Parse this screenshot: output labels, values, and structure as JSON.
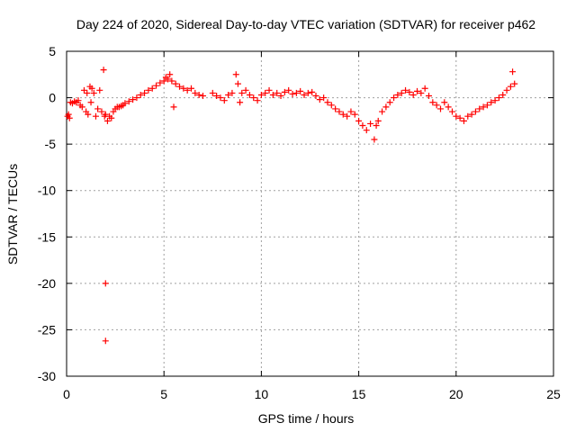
{
  "chart_data": {
    "type": "scatter",
    "title": "Day 224 of 2020, Sidereal Day-to-day VTEC variation (SDTVAR) for receiver p462",
    "xlabel": "GPS time / hours",
    "ylabel": "SDTVAR / TECUs",
    "xlim": [
      0,
      25
    ],
    "ylim": [
      -30,
      5
    ],
    "xticks": [
      0,
      5,
      10,
      15,
      20,
      25
    ],
    "xtick_labels": [
      "0",
      "5",
      "10",
      "15",
      "20",
      "25"
    ],
    "yticks": [
      5,
      0,
      -5,
      -10,
      -15,
      -20,
      -25,
      -30
    ],
    "ytick_labels": [
      "5",
      "0",
      "-5",
      "-10",
      "-15",
      "-20",
      "-25",
      "-30"
    ],
    "grid": true,
    "marker": "plus",
    "color": "#ff0000",
    "series": [
      {
        "name": "SDTVAR",
        "x": [
          0.05,
          0.1,
          0.15,
          0.2,
          0.3,
          0.4,
          0.5,
          0.6,
          0.7,
          0.8,
          0.9,
          1.0,
          1.05,
          1.1,
          1.2,
          1.25,
          1.3,
          1.4,
          1.5,
          1.6,
          1.7,
          1.8,
          1.9,
          1.95,
          2.0,
          2.0,
          2.0,
          2.1,
          2.2,
          2.3,
          2.4,
          2.5,
          2.6,
          2.7,
          2.8,
          2.9,
          3.0,
          3.2,
          3.4,
          3.6,
          3.8,
          4.0,
          4.2,
          4.4,
          4.6,
          4.8,
          5.0,
          5.1,
          5.2,
          5.3,
          5.4,
          5.5,
          5.6,
          5.8,
          6.0,
          6.2,
          6.4,
          6.6,
          6.8,
          7.0,
          7.5,
          7.7,
          7.9,
          8.1,
          8.3,
          8.5,
          8.7,
          8.8,
          8.9,
          9.0,
          9.2,
          9.4,
          9.6,
          9.8,
          10.0,
          10.2,
          10.4,
          10.6,
          10.8,
          11.0,
          11.2,
          11.4,
          11.6,
          11.8,
          12.0,
          12.2,
          12.4,
          12.6,
          12.8,
          13.0,
          13.2,
          13.4,
          13.6,
          13.8,
          14.0,
          14.2,
          14.4,
          14.6,
          14.8,
          15.0,
          15.2,
          15.4,
          15.6,
          15.8,
          15.9,
          16.0,
          16.2,
          16.4,
          16.6,
          16.8,
          17.0,
          17.2,
          17.4,
          17.6,
          17.8,
          18.0,
          18.2,
          18.4,
          18.6,
          18.8,
          19.0,
          19.2,
          19.4,
          19.6,
          19.8,
          20.0,
          20.2,
          20.4,
          20.6,
          20.8,
          21.0,
          21.2,
          21.4,
          21.6,
          21.8,
          22.0,
          22.2,
          22.4,
          22.6,
          22.8,
          22.9,
          23.0
        ],
        "y": [
          -2.0,
          -1.8,
          -2.2,
          -0.5,
          -0.6,
          -0.4,
          -0.5,
          -0.3,
          -0.8,
          -1.0,
          0.8,
          -1.5,
          0.5,
          -1.8,
          1.2,
          -0.5,
          1.0,
          0.5,
          -2.0,
          -1.2,
          0.8,
          -1.5,
          3.0,
          -2.0,
          -20.0,
          -26.2,
          -1.8,
          -2.5,
          -2.0,
          -2.2,
          -1.5,
          -1.2,
          -1.0,
          -1.0,
          -0.9,
          -0.8,
          -0.6,
          -0.4,
          -0.2,
          0.0,
          0.3,
          0.5,
          0.8,
          1.0,
          1.3,
          1.6,
          1.8,
          2.2,
          2.0,
          2.5,
          1.8,
          -1.0,
          1.5,
          1.2,
          1.0,
          0.8,
          1.0,
          0.5,
          0.3,
          0.2,
          0.5,
          0.2,
          0.0,
          -0.3,
          0.3,
          0.5,
          2.5,
          1.5,
          -0.5,
          0.5,
          0.8,
          0.3,
          0.0,
          -0.3,
          0.3,
          0.5,
          0.8,
          0.3,
          0.5,
          0.2,
          0.6,
          0.8,
          0.4,
          0.5,
          0.7,
          0.3,
          0.5,
          0.6,
          0.2,
          -0.2,
          0.0,
          -0.5,
          -0.8,
          -1.2,
          -1.5,
          -1.8,
          -2.0,
          -1.5,
          -1.8,
          -2.5,
          -3.0,
          -3.5,
          -2.8,
          -4.5,
          -3.0,
          -2.5,
          -1.5,
          -1.0,
          -0.5,
          0.0,
          0.3,
          0.5,
          0.8,
          0.6,
          0.3,
          0.7,
          0.5,
          1.0,
          0.2,
          -0.5,
          -0.8,
          -1.2,
          -0.5,
          -1.0,
          -1.5,
          -2.0,
          -2.2,
          -2.5,
          -2.0,
          -1.8,
          -1.5,
          -1.2,
          -1.0,
          -0.8,
          -0.5,
          -0.3,
          0.0,
          0.3,
          0.8,
          1.2,
          2.8,
          1.5
        ]
      }
    ]
  }
}
